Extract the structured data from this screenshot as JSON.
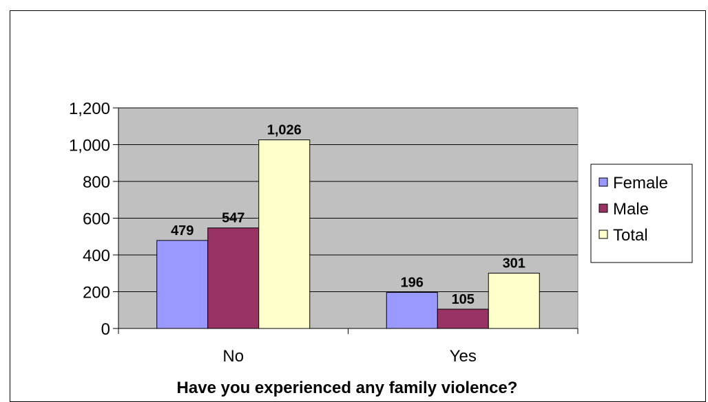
{
  "chart_data": {
    "type": "bar",
    "title": "",
    "xlabel": "Have you experienced any family violence?",
    "ylabel": "",
    "categories": [
      "No",
      "Yes"
    ],
    "series": [
      {
        "name": "Female",
        "values": [
          479,
          196
        ],
        "color": "#9999ff"
      },
      {
        "name": "Male",
        "values": [
          547,
          105
        ],
        "color": "#993366"
      },
      {
        "name": "Total",
        "values": [
          1026,
          301
        ],
        "color": "#ffffcc"
      }
    ],
    "value_labels": {
      "Female": [
        "479",
        "196"
      ],
      "Male": [
        "547",
        "105"
      ],
      "Total": [
        "1,026",
        "301"
      ]
    },
    "yticks": [
      0,
      200,
      400,
      600,
      800,
      1000,
      1200
    ],
    "ytick_labels": [
      "0",
      "200",
      "400",
      "600",
      "800",
      "1,000",
      "1,200"
    ],
    "ylim": [
      0,
      1200
    ],
    "grid": true,
    "plot_background": "#c0c0c0",
    "legend_position": "right"
  }
}
